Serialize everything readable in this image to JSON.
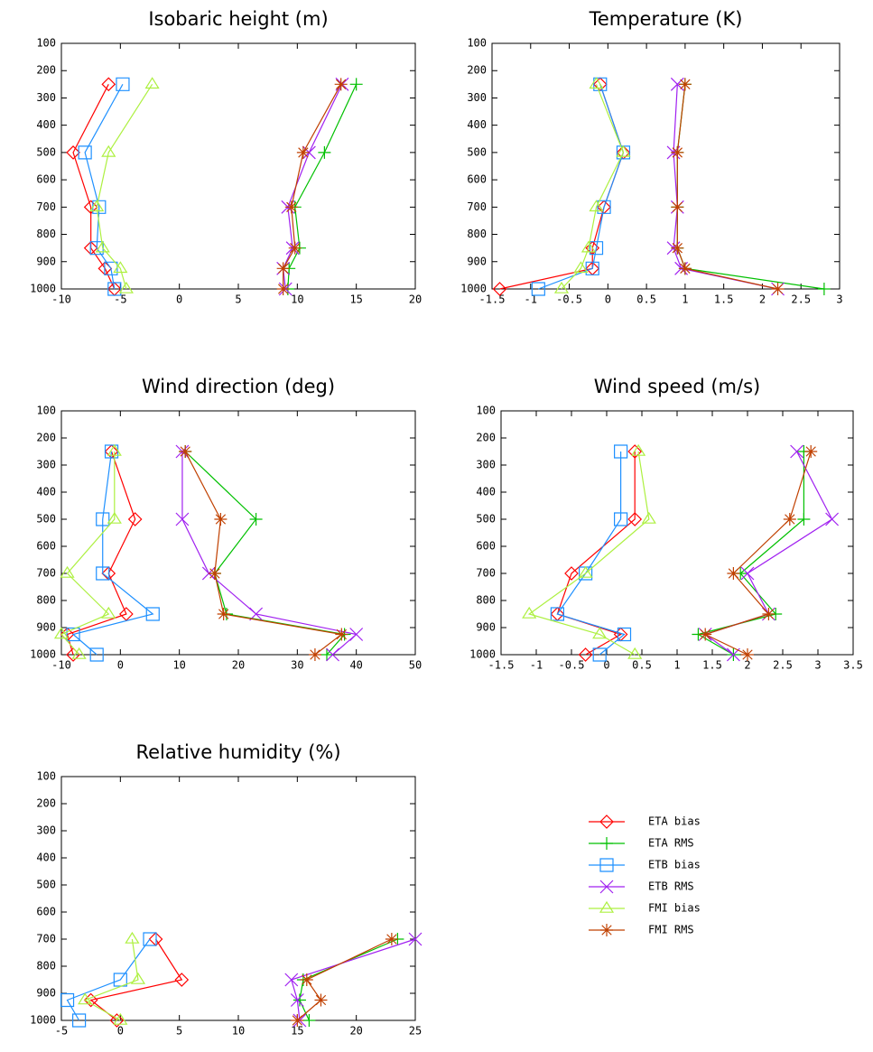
{
  "chart_data": [
    {
      "type": "line",
      "title": "Isobaric height (m)",
      "y": [
        250,
        500,
        700,
        850,
        925,
        1000
      ],
      "xlim": [
        -10,
        20
      ],
      "xticks": [
        -10,
        -5,
        0,
        5,
        10,
        15,
        20
      ],
      "ylim": [
        1000,
        100
      ],
      "yticks": [
        100,
        200,
        300,
        400,
        500,
        600,
        700,
        800,
        900,
        1000
      ],
      "series": [
        {
          "values": [
            -6,
            -9,
            -7.5,
            -7.5,
            -6.3,
            -5.5
          ]
        },
        {
          "values": [
            15,
            12.3,
            9.8,
            10.2,
            9.3,
            9.2
          ]
        },
        {
          "values": [
            -4.8,
            -8,
            -6.8,
            -7,
            -5.8,
            -5.5
          ]
        },
        {
          "values": [
            13.8,
            11,
            9.2,
            9.6,
            8.8,
            9
          ]
        },
        {
          "values": [
            -2.3,
            -6,
            -7,
            -6.5,
            -5,
            -4.5
          ]
        },
        {
          "values": [
            13.7,
            10.5,
            9.5,
            9.8,
            8.8,
            8.8
          ]
        }
      ]
    },
    {
      "type": "line",
      "title": "Temperature (K)",
      "y": [
        250,
        500,
        700,
        850,
        925,
        1000
      ],
      "xlim": [
        -1.5,
        3
      ],
      "xticks": [
        -1.5,
        -1,
        -0.5,
        0,
        0.5,
        1,
        1.5,
        2,
        2.5,
        3
      ],
      "ylim": [
        1000,
        100
      ],
      "yticks": [
        100,
        200,
        300,
        400,
        500,
        600,
        700,
        800,
        900,
        1000
      ],
      "series": [
        {
          "values": [
            -0.1,
            0.2,
            -0.05,
            -0.2,
            -0.2,
            -1.4
          ]
        },
        {
          "values": [
            1.0,
            0.9,
            0.9,
            0.9,
            1.0,
            2.8
          ]
        },
        {
          "values": [
            -0.1,
            0.2,
            -0.05,
            -0.15,
            -0.2,
            -0.9
          ]
        },
        {
          "values": [
            0.9,
            0.85,
            0.9,
            0.85,
            0.95,
            2.2
          ]
        },
        {
          "values": [
            -0.15,
            0.2,
            -0.15,
            -0.25,
            -0.35,
            -0.6
          ]
        },
        {
          "values": [
            1.0,
            0.9,
            0.9,
            0.9,
            1.0,
            2.2
          ]
        }
      ]
    },
    {
      "type": "line",
      "title": "Wind direction (deg)",
      "y": [
        250,
        500,
        700,
        850,
        925,
        1000
      ],
      "xlim": [
        -10,
        50
      ],
      "xticks": [
        -10,
        0,
        10,
        20,
        30,
        40,
        50
      ],
      "ylim": [
        1000,
        100
      ],
      "yticks": [
        100,
        200,
        300,
        400,
        500,
        600,
        700,
        800,
        900,
        1000
      ],
      "series": [
        {
          "values": [
            -1.5,
            2.5,
            -2,
            1,
            -9,
            -8
          ]
        },
        {
          "values": [
            11,
            23,
            16,
            18,
            38,
            35
          ]
        },
        {
          "values": [
            -1.5,
            -3,
            -3,
            5.5,
            -8,
            -4
          ]
        },
        {
          "values": [
            10.5,
            10.5,
            15,
            23,
            40,
            36
          ]
        },
        {
          "values": [
            -1,
            -1,
            -9,
            -2,
            -10,
            -7
          ]
        },
        {
          "values": [
            11,
            17,
            16,
            17.5,
            37.5,
            33
          ]
        }
      ]
    },
    {
      "type": "line",
      "title": "Wind speed (m/s)",
      "y": [
        250,
        500,
        700,
        850,
        925,
        1000
      ],
      "xlim": [
        -1.5,
        3.5
      ],
      "xticks": [
        -1.5,
        -1,
        -0.5,
        0,
        0.5,
        1,
        1.5,
        2,
        2.5,
        3,
        3.5
      ],
      "ylim": [
        1000,
        100
      ],
      "yticks": [
        100,
        200,
        300,
        400,
        500,
        600,
        700,
        800,
        900,
        1000
      ],
      "series": [
        {
          "values": [
            0.4,
            0.4,
            -0.5,
            -0.7,
            0.2,
            -0.3
          ]
        },
        {
          "values": [
            2.8,
            2.8,
            1.9,
            2.4,
            1.3,
            1.8
          ]
        },
        {
          "values": [
            0.2,
            0.2,
            -0.3,
            -0.7,
            0.25,
            -0.1
          ]
        },
        {
          "values": [
            2.7,
            3.2,
            2.0,
            2.3,
            1.4,
            1.8
          ]
        },
        {
          "values": [
            0.45,
            0.6,
            -0.3,
            -1.1,
            -0.1,
            0.4
          ]
        },
        {
          "values": [
            2.9,
            2.6,
            1.8,
            2.3,
            1.4,
            2.0
          ]
        }
      ]
    },
    {
      "type": "line",
      "title": "Relative humidity (%)",
      "y": [
        700,
        850,
        925,
        1000
      ],
      "xlim": [
        -5,
        25
      ],
      "xticks": [
        -5,
        0,
        5,
        10,
        15,
        20,
        25
      ],
      "ylim": [
        1000,
        100
      ],
      "yticks": [
        100,
        200,
        300,
        400,
        500,
        600,
        700,
        800,
        900,
        1000
      ],
      "series": [
        {
          "values": [
            3,
            5.2,
            -2.5,
            -0.3
          ]
        },
        {
          "values": [
            23.5,
            15.5,
            15.2,
            16
          ]
        },
        {
          "values": [
            2.5,
            0,
            -4.5,
            -3.5
          ]
        },
        {
          "values": [
            25,
            14.5,
            15,
            15.2
          ]
        },
        {
          "values": [
            1,
            1.5,
            -3,
            0
          ]
        },
        {
          "values": [
            23,
            15.8,
            17,
            15
          ]
        }
      ]
    }
  ],
  "legend": [
    {
      "name": "ETA bias",
      "color": "#ff0000",
      "marker": "diamond"
    },
    {
      "name": "ETA RMS",
      "color": "#00c000",
      "marker": "plus"
    },
    {
      "name": "ETB bias",
      "color": "#1e90ff",
      "marker": "square"
    },
    {
      "name": "ETB RMS",
      "color": "#a020f0",
      "marker": "cross"
    },
    {
      "name": "FMI bias",
      "color": "#adf040",
      "marker": "triangle"
    },
    {
      "name": "FMI RMS",
      "color": "#c04000",
      "marker": "asterisk"
    }
  ]
}
